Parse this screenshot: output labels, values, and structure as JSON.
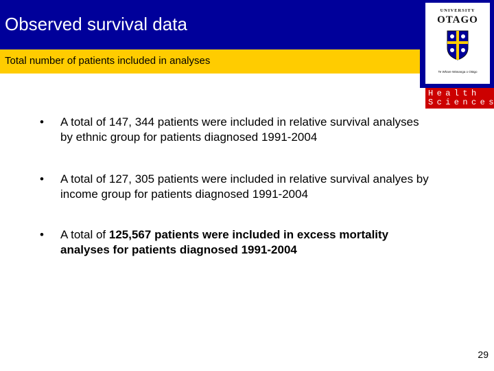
{
  "slide": {
    "title": "Observed survival data",
    "subtitle": "Total number of patients included in analyses",
    "page_number": "29",
    "colors": {
      "title_bar": "#00009a",
      "subtitle_bar": "#ffcc00",
      "health_box": "#cc0000"
    }
  },
  "logo": {
    "university": "UNIVERSITY",
    "name": "OTAGO",
    "motto": "Te Whare Wānanga o Otāgo",
    "crest_icon": "otago-crest-icon",
    "health_line1": "Health",
    "health_line2": "Sciences"
  },
  "bullets": [
    {
      "marker": "•",
      "text": "A total of 147, 344 patients were included in relative survival analyses by ethnic group for patients diagnosed 1991-2004"
    },
    {
      "marker": "•",
      "text": "A total of 127, 305 patients were included in relative survival analyes by income group for patients diagnosed 1991-2004"
    },
    {
      "marker": "•",
      "text_prefix": "A total of ",
      "text_bold": "125,567 patients were included in excess mortality analyses for patients diagnosed 1991-2004"
    }
  ]
}
